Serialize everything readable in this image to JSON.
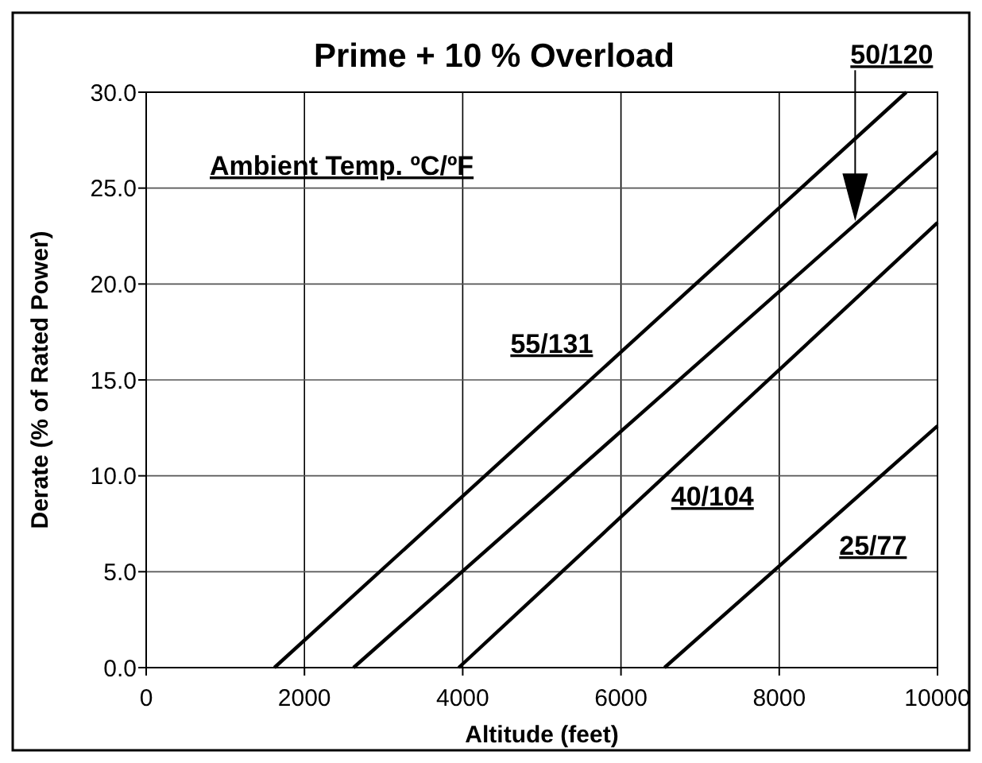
{
  "chart_data": {
    "type": "line",
    "title": "Prime + 10 % Overload",
    "xlabel": "Altitude (feet)",
    "ylabel": "Derate (% of Rated Power)",
    "series": [
      {
        "name": "55/131",
        "color": "#000000",
        "x": [
          1620,
          9605
        ],
        "values": [
          0,
          30
        ]
      },
      {
        "name": "50/120",
        "color": "#000000",
        "x": [
          2620,
          10000
        ],
        "values": [
          0,
          26.9
        ]
      },
      {
        "name": "40/104",
        "color": "#000000",
        "x": [
          3950,
          10000
        ],
        "values": [
          0,
          23.2
        ]
      },
      {
        "name": "25/77",
        "color": "#000000",
        "x": [
          6550,
          10000
        ],
        "values": [
          0,
          12.6
        ]
      }
    ],
    "annotations": [
      "Ambient Temp. ºC/ºF"
    ],
    "xlim": [
      0,
      10000
    ],
    "xticks": [
      0,
      2000,
      4000,
      6000,
      8000,
      10000
    ],
    "ylim": [
      0,
      30
    ],
    "yticks": [
      {
        "value": 0,
        "label": "0.0"
      },
      {
        "value": 5,
        "label": "5.0"
      },
      {
        "value": 10,
        "label": "10.0"
      },
      {
        "value": 15,
        "label": "15.0"
      },
      {
        "value": 20,
        "label": "20.0"
      },
      {
        "value": 25,
        "label": "25.0"
      },
      {
        "value": 30,
        "label": "30.0"
      }
    ],
    "grid": true,
    "line_style": "solid",
    "marker": "none"
  }
}
